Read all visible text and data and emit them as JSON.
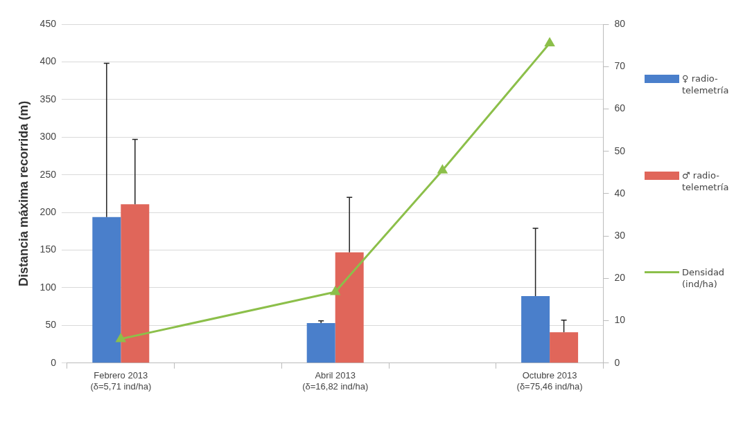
{
  "chart_data": {
    "type": "bar",
    "ylabel": "Distancia máxima recorrida (m)",
    "categories": [
      "Febrero 2013\n(δ=5,71 ind/ha)",
      null,
      "Abril 2013\n(δ=16,82 ind/ha)",
      null,
      "Octubre 2013\n(δ=75,46 ind/ha)"
    ],
    "series": [
      {
        "name": "♀ radio-telemetría",
        "color": "#4a7fcb",
        "values": [
          194,
          null,
          53,
          null,
          89
        ],
        "errors": [
          [
            194,
            398
          ],
          null,
          [
            53,
            56
          ],
          null,
          [
            89,
            179
          ]
        ]
      },
      {
        "name": "♂ radio-telemetría",
        "color": "#e0665a",
        "values": [
          211,
          null,
          147,
          null,
          41
        ],
        "errors": [
          [
            211,
            297
          ],
          null,
          [
            147,
            220
          ],
          null,
          [
            41,
            57
          ]
        ]
      },
      {
        "name": "Densidad (ind/ha)",
        "type": "line",
        "axis": "y2",
        "color": "#8cbf4a",
        "values": [
          5.7,
          null,
          16.8,
          45.5,
          75.5
        ],
        "marker": "triangle"
      }
    ],
    "ylim": [
      0,
      450
    ],
    "yticks": [
      0,
      50,
      100,
      150,
      200,
      250,
      300,
      350,
      400,
      450
    ],
    "y2lim": [
      0,
      80
    ],
    "y2ticks": [
      0,
      10,
      20,
      30,
      40,
      50,
      60,
      70,
      80
    ],
    "grid": "y",
    "legend": "right"
  }
}
